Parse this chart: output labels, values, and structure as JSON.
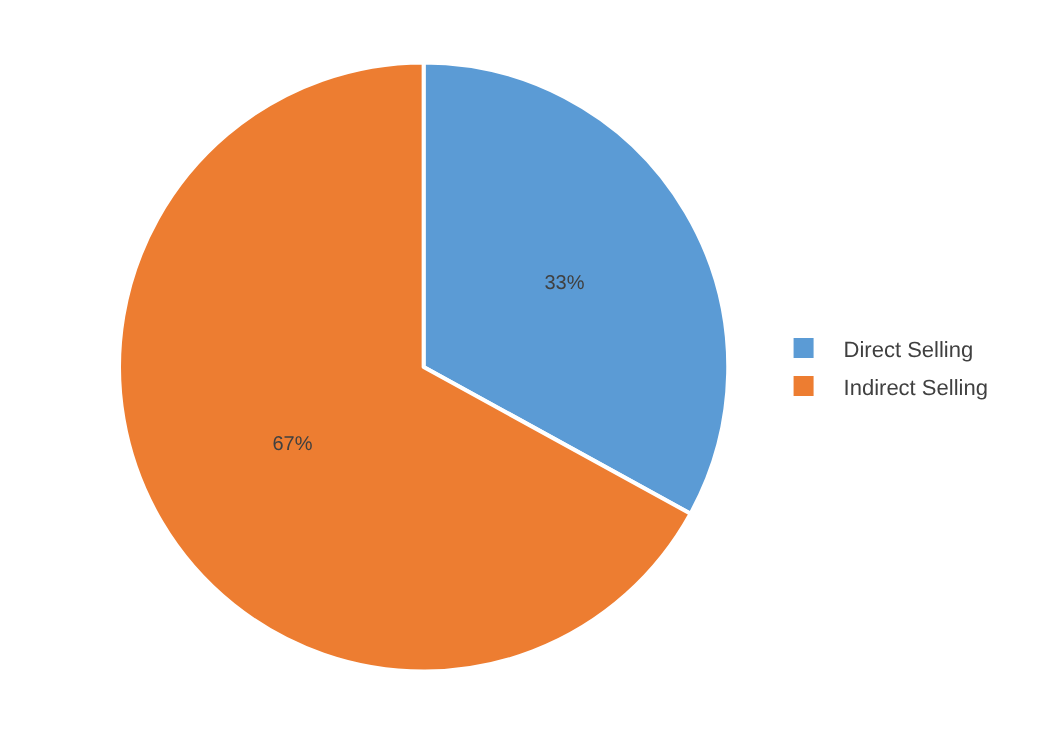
{
  "chart_data": {
    "type": "pie",
    "categories": [
      "Direct Selling",
      "Indirect Selling"
    ],
    "values": [
      33,
      67
    ],
    "colors": [
      "#5b9bd5",
      "#ed7d31"
    ],
    "value_labels": [
      "33%",
      "67%"
    ],
    "legend": "right"
  }
}
